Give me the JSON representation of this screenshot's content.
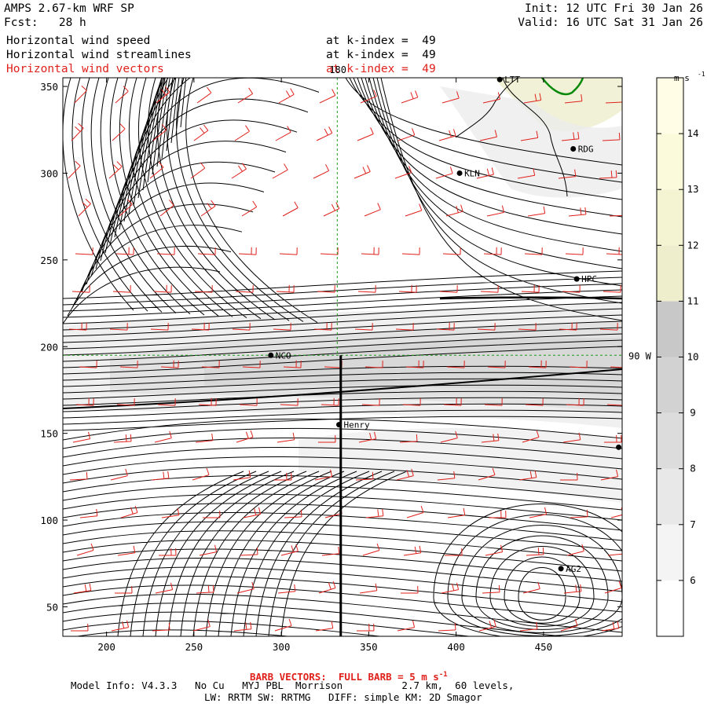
{
  "header": {
    "title": "AMPS 2.67-km WRF SP",
    "fcst_label": "Fcst:",
    "fcst_value": "28 h",
    "init": "Init: 12 UTC Fri 30 Jan 26",
    "valid": "Valid: 16 UTC Sat 31 Jan 26",
    "fields": [
      {
        "name": "Horizontal wind speed",
        "level": "at k-index =  49",
        "color": "#000000"
      },
      {
        "name": "Horizontal wind streamlines",
        "level": "at k-index =  49",
        "color": "#000000"
      },
      {
        "name": "Horizontal wind vectors",
        "level": "at k-index =  49",
        "color": "#e0201b"
      }
    ]
  },
  "colorbar": {
    "unit": "m s",
    "unit_exp": "-1",
    "levels": [
      6,
      7,
      8,
      9,
      10,
      11,
      12,
      13,
      14
    ],
    "colors": [
      "#ffffff",
      "#f4f4f4",
      "#e8e8e8",
      "#dcdcdc",
      "#d2d2d2",
      "#c8c8c8",
      "#eeeecc",
      "#f4f4d2",
      "#fbfbdc",
      "#fffde6"
    ]
  },
  "chart_data": {
    "type": "map",
    "xlim": [
      175,
      495
    ],
    "ylim": [
      33,
      355
    ],
    "xticks": [
      200,
      250,
      300,
      350,
      400,
      450
    ],
    "yticks": [
      50,
      100,
      150,
      200,
      250,
      300,
      350
    ],
    "meridian_label": "180",
    "parallel_label": "90 W",
    "meridian_x": 332,
    "parallel_y": 195,
    "cross_section": {
      "x": 334,
      "y0": 33,
      "y1": 195
    },
    "stations": [
      {
        "id": "LTT",
        "x": 425,
        "y": 354
      },
      {
        "id": "RDG",
        "x": 467,
        "y": 314
      },
      {
        "id": "KLN",
        "x": 402,
        "y": 300
      },
      {
        "id": "HPC",
        "x": 469,
        "y": 239
      },
      {
        "id": "NCO",
        "x": 294,
        "y": 195
      },
      {
        "id": "Henry",
        "x": 333,
        "y": 155
      },
      {
        "id": "",
        "x": 493,
        "y": 142
      },
      {
        "id": "AG2",
        "x": 460,
        "y": 72
      }
    ]
  },
  "footer": {
    "barb_note": "BARB VECTORS:  FULL BARB = 5 m s",
    "barb_exp": "-1",
    "model_info": "Model Info: V4.3.3   No Cu   MYJ PBL  Morrison          2.7 km,  60 levels,",
    "physics": "LW: RRTM SW: RRTMG   DIFF: simple KM: 2D Smagor"
  }
}
